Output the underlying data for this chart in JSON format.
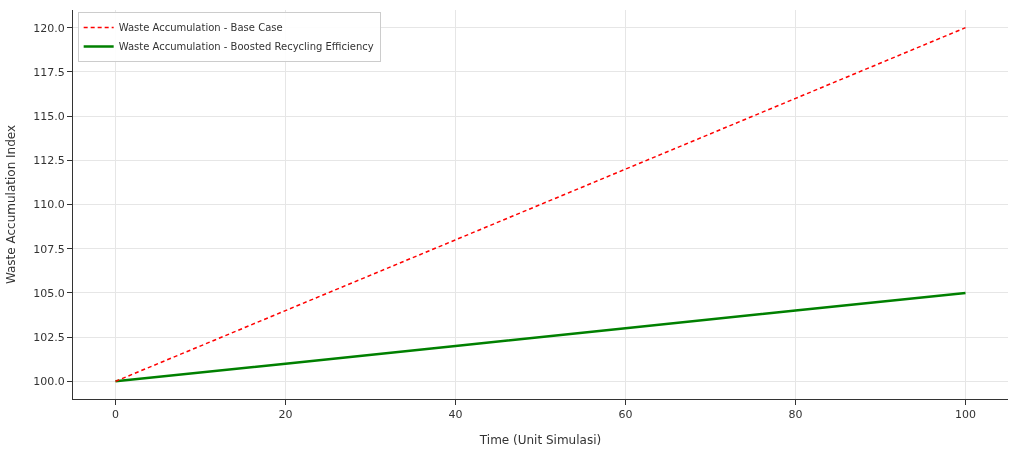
{
  "chart_data": {
    "type": "line",
    "xlabel": "Time (Unit Simulasi)",
    "ylabel": "Waste Accumulation Index",
    "x": [
      0,
      20,
      40,
      60,
      80,
      100
    ],
    "series": [
      {
        "name": "Waste Accumulation - Base Case",
        "color": "#ff0000",
        "line_style": "dashed",
        "values": [
          100,
          104,
          108,
          112,
          116,
          120
        ]
      },
      {
        "name": "Waste Accumulation - Boosted Recycling Efficiency",
        "color": "#008000",
        "line_style": "solid",
        "values": [
          100,
          101,
          102,
          103,
          104,
          105
        ]
      }
    ],
    "xlim": [
      -5,
      105
    ],
    "xticks": [
      0,
      20,
      40,
      60,
      80,
      100
    ],
    "ylim": [
      99,
      121
    ],
    "yticks": [
      {
        "value": 100,
        "label": "100.0"
      },
      {
        "value": 102.5,
        "label": "102.5"
      },
      {
        "value": 105,
        "label": "105.0"
      },
      {
        "value": 107.5,
        "label": "107.5"
      },
      {
        "value": 110,
        "label": "110.0"
      },
      {
        "value": 112.5,
        "label": "112.5"
      },
      {
        "value": 115,
        "label": "115.0"
      },
      {
        "value": 117.5,
        "label": "117.5"
      },
      {
        "value": 120,
        "label": "120.0"
      }
    ],
    "grid": true,
    "legend": "top left",
    "marker": "none"
  }
}
